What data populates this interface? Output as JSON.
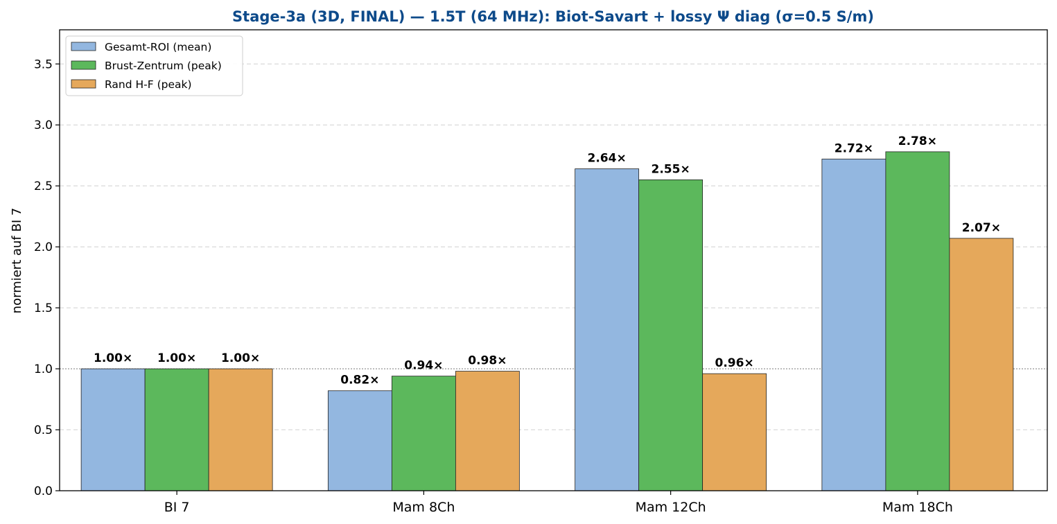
{
  "chart_data": {
    "type": "bar",
    "title": "Stage-3a (3D, FINAL) — 1.5T (64 MHz): Biot-Savart + lossy Ψ diag (σ=0.5 S/m)",
    "title_color": "#0d4a8a",
    "xlabel": "",
    "ylabel": "normiert auf BI 7",
    "categories": [
      "BI 7",
      "Mam 8Ch",
      "Mam 12Ch",
      "Mam 18Ch"
    ],
    "series": [
      {
        "name": "Gesamt-ROI (mean)",
        "color": "#93b7e0",
        "values": [
          1.0,
          0.82,
          2.64,
          2.72
        ],
        "labels": [
          "1.00×",
          "0.82×",
          "2.64×",
          "2.72×"
        ]
      },
      {
        "name": "Brust-Zentrum (peak)",
        "color": "#5cb85c",
        "values": [
          1.0,
          0.94,
          2.55,
          2.78
        ],
        "labels": [
          "1.00×",
          "0.94×",
          "2.55×",
          "2.78×"
        ]
      },
      {
        "name": "Rand H-F (peak)",
        "color": "#e5a85b",
        "values": [
          1.0,
          0.98,
          0.96,
          2.07
        ],
        "labels": [
          "1.00×",
          "0.98×",
          "0.96×",
          "2.07×"
        ]
      }
    ],
    "ylim": [
      0,
      3.78
    ],
    "yticks": [
      "0.0",
      "0.5",
      "1.0",
      "1.5",
      "2.0",
      "2.5",
      "3.0",
      "3.5"
    ],
    "reference_line": 1.0,
    "grid": "y-dashed",
    "legend_position": "top-left"
  }
}
